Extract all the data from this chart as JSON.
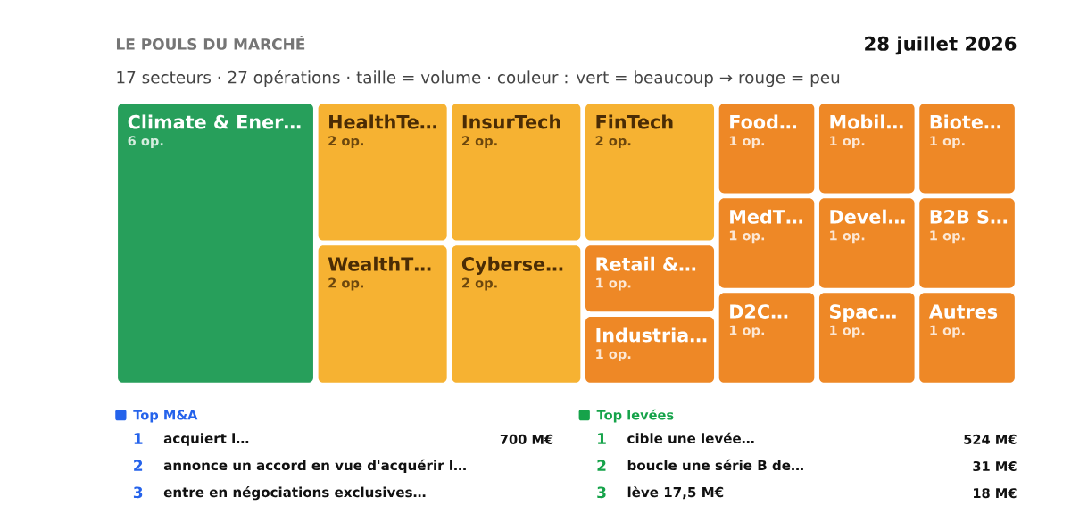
{
  "chart_data": [
    {
      "type": "other",
      "title": "LE POULS DU MARCHÉ",
      "subtitle": "17 secteurs · 27 opérations · taille = volume · couleur : vert = beaucoup → rouge = peu",
      "annotations": [
        "28 juillet 2026"
      ],
      "categories": [
        "Climate & Ener…",
        "HealthTe…",
        "WealthT…",
        "InsurTech",
        "Cyberse…",
        "FinTech",
        "Retail &…",
        "Industria…",
        "Food…",
        "MedT…",
        "D2C…",
        "Mobil…",
        "Biote…",
        "Devel…",
        "Spac…",
        "B2B S…",
        "Autres"
      ],
      "values": [
        6,
        2,
        2,
        2,
        2,
        2,
        1,
        1,
        1,
        1,
        1,
        1,
        1,
        1,
        1,
        1,
        1
      ],
      "value_labels": [
        "6 op.",
        "2 op.",
        "2 op.",
        "2 op.",
        "2 op.",
        "2 op.",
        "1 op.",
        "1 op.",
        "1 op.",
        "1 op.",
        "1 op.",
        "1 op.",
        "1 op.",
        "1 op.",
        "1 op.",
        "1 op.",
        "1 op."
      ],
      "colors": [
        "#279f5b",
        "#f6b232",
        "#f6b232",
        "#f6b232",
        "#f6b232",
        "#f6b232",
        "#ee8826",
        "#ee8826",
        "#ee8826",
        "#ee8826",
        "#ee8826",
        "#ee8826",
        "#ee8826",
        "#ee8826",
        "#ee8826",
        "#ee8826",
        "#ee8826"
      ]
    },
    {
      "type": "other",
      "title": "Top M&A",
      "color": "#2563eb",
      "categories": [
        "acquiert l…",
        "annonce un accord en vue d'acquérir l…",
        "entre en négociations exclusives…"
      ],
      "annotations": [
        "1",
        "2",
        "3"
      ],
      "value_labels": [
        "700 M€",
        null,
        null
      ]
    },
    {
      "type": "other",
      "title": "Top levées",
      "color": "#16a34a",
      "categories": [
        "cible une levée…",
        "boucle une série B de…",
        "lève 17,5 M€"
      ],
      "annotations": [
        "1",
        "2",
        "3"
      ],
      "value_labels": [
        "524 M€",
        "31 M€",
        "18 M€"
      ]
    }
  ]
}
